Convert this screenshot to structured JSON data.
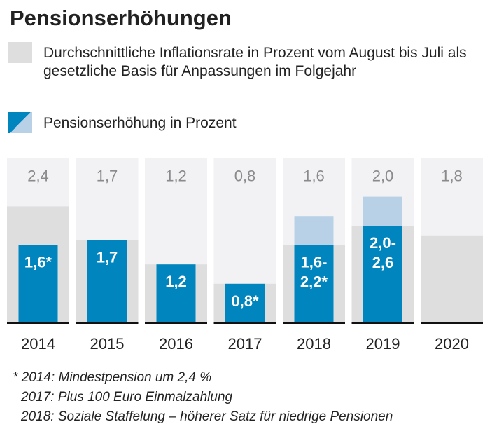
{
  "title": "Pensionserhöhungen",
  "legend": {
    "inflation": "Durchschnittliche Inflationsrate in Prozent vom August bis Juli als gesetzliche Basis für Anpassungen im Folgejahr",
    "increase": "Pensionserhöhung in Prozent"
  },
  "colors": {
    "column_bg": "#f2f2f4",
    "inflation": "#dededf",
    "increase": "#0085bf",
    "increase_range": "#b9d1e6",
    "baseline": "#111111"
  },
  "chart_data": {
    "type": "bar",
    "categories": [
      "2014",
      "2015",
      "2016",
      "2017",
      "2018",
      "2019",
      "2020"
    ],
    "series": [
      {
        "name": "Durchschnittliche Inflationsrate",
        "values": [
          2.4,
          1.7,
          1.2,
          0.8,
          1.6,
          2.0,
          1.8
        ],
        "labels": [
          "2,4",
          "1,7",
          "1,2",
          "0,8",
          "1,6",
          "2,0",
          "1,8"
        ]
      },
      {
        "name": "Pensionserhöhung",
        "values": [
          1.6,
          1.7,
          1.2,
          0.8,
          1.6,
          2.0,
          null
        ],
        "range_max": [
          null,
          null,
          null,
          null,
          2.2,
          2.6,
          null
        ],
        "labels": [
          "1,6*",
          "1,7",
          "1,2",
          "0,8*",
          "1,6-\n2,2*",
          "2,0-\n2,6",
          ""
        ]
      }
    ],
    "ylim": [
      0,
      3.4
    ]
  },
  "footnotes": [
    "* 2014: Mindestpension um 2,4 %",
    "2017: Plus 100 Euro Einmalzahlung",
    "2018: Soziale Staffelung – höherer Satz für niedrige Pensionen"
  ]
}
